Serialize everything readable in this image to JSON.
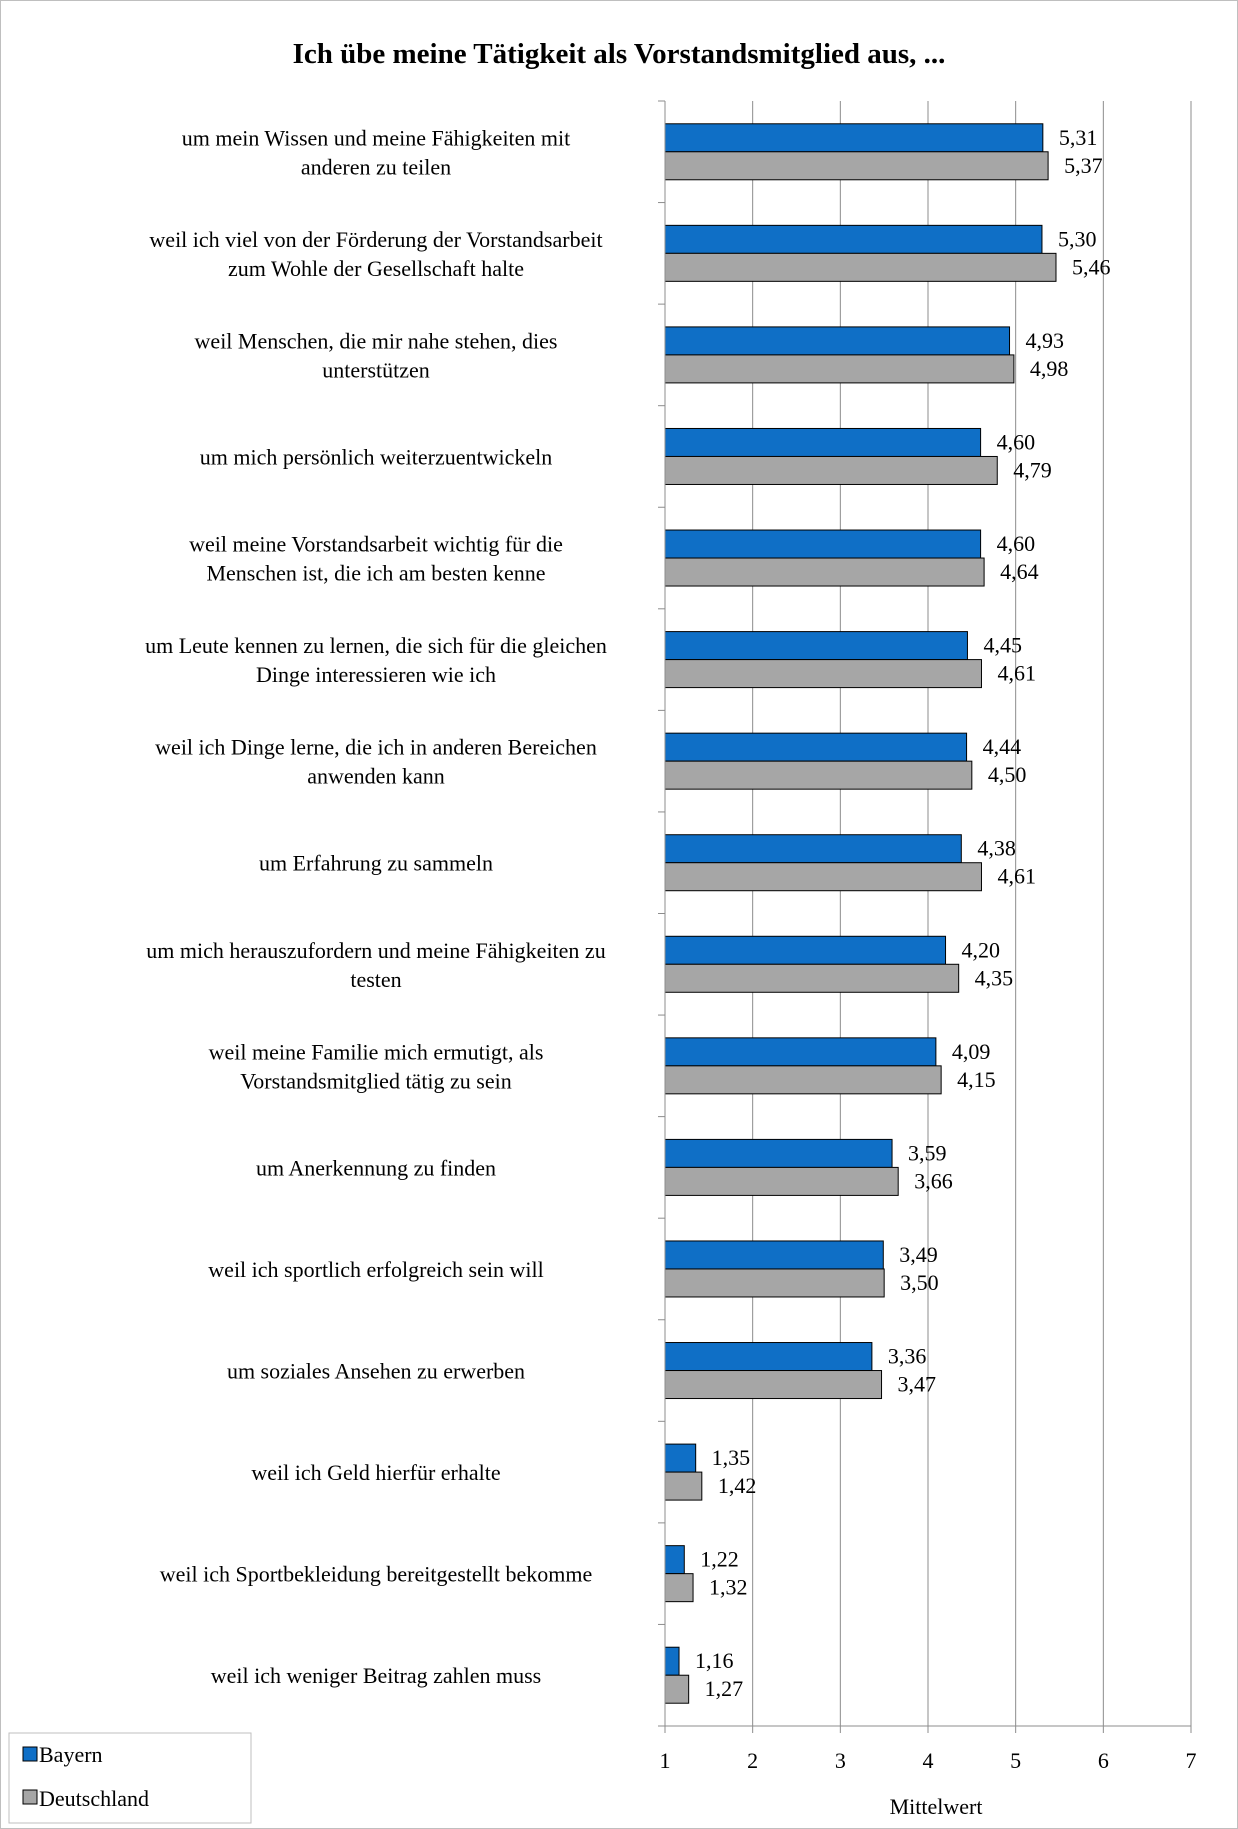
{
  "chart_data": {
    "type": "bar",
    "orientation": "horizontal",
    "title": "Ich übe meine Tätigkeit  als Vorstandsmitglied aus, ...",
    "xlabel": "Mittelwert",
    "ylabel": "",
    "xlim": [
      1,
      7
    ],
    "xticks": [
      "1",
      "2",
      "3",
      "4",
      "5",
      "6",
      "7"
    ],
    "grid": "vertical",
    "legend_position": "bottom-left",
    "categories": [
      [
        "um mein Wissen und meine Fähigkeiten mit",
        "anderen zu teilen"
      ],
      [
        "weil ich viel von der Förderung der Vorstandsarbeit",
        "zum Wohle der Gesellschaft halte"
      ],
      [
        "weil Menschen, die mir nahe stehen, dies",
        "unterstützen"
      ],
      [
        "um mich persönlich weiterzuentwickeln"
      ],
      [
        "weil meine Vorstandsarbeit wichtig für die",
        "Menschen ist, die ich am besten kenne"
      ],
      [
        "um Leute kennen zu lernen, die sich für die gleichen",
        "Dinge interessieren wie ich"
      ],
      [
        "weil ich Dinge lerne, die ich in anderen Bereichen",
        "anwenden kann"
      ],
      [
        "um Erfahrung zu sammeln"
      ],
      [
        "um mich herauszufordern und meine Fähigkeiten zu",
        "testen"
      ],
      [
        "weil meine Familie mich ermutigt, als",
        "Vorstandsmitglied tätig zu sein"
      ],
      [
        "um Anerkennung zu finden"
      ],
      [
        "weil ich sportlich erfolgreich sein will"
      ],
      [
        "um soziales Ansehen zu erwerben"
      ],
      [
        "weil ich Geld hierfür erhalte"
      ],
      [
        "weil ich Sportbekleidung bereitgestellt bekomme"
      ],
      [
        "weil ich weniger Beitrag zahlen muss"
      ]
    ],
    "series": [
      {
        "name": "Bayern",
        "color": "#0f6fc6",
        "values": [
          5.31,
          5.3,
          4.93,
          4.6,
          4.6,
          4.45,
          4.44,
          4.38,
          4.2,
          4.09,
          3.59,
          3.49,
          3.36,
          1.35,
          1.22,
          1.16
        ],
        "labels": [
          "5,31",
          "5,30",
          "4,93",
          "4,60",
          "4,60",
          "4,45",
          "4,44",
          "4,38",
          "4,20",
          "4,09",
          "3,59",
          "3,49",
          "3,36",
          "1,35",
          "1,22",
          "1,16"
        ]
      },
      {
        "name": "Deutschland",
        "color": "#a6a6a6",
        "values": [
          5.37,
          5.46,
          4.98,
          4.79,
          4.64,
          4.61,
          4.5,
          4.61,
          4.35,
          4.15,
          3.66,
          3.5,
          3.47,
          1.42,
          1.32,
          1.27
        ],
        "labels": [
          "5,37",
          "5,46",
          "4,98",
          "4,79",
          "4,64",
          "4,61",
          "4,50",
          "4,61",
          "4,35",
          "4,15",
          "3,66",
          "3,50",
          "3,47",
          "1,42",
          "1,32",
          "1,27"
        ]
      }
    ]
  }
}
